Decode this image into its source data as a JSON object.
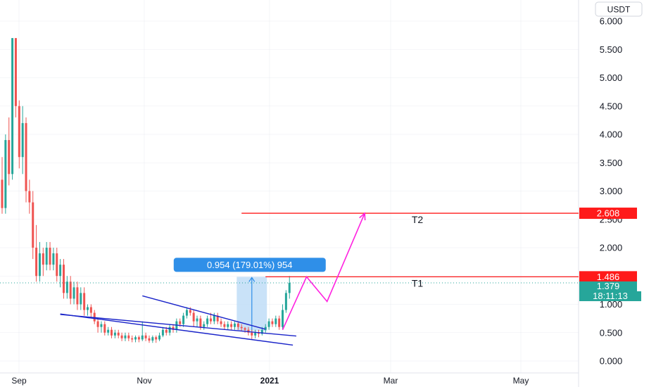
{
  "currency": "USDT",
  "colors": {
    "up": "#26a69a",
    "down": "#ef5350",
    "trendline": "#1a24c9",
    "projection": "#ff22e0",
    "target": "#ff1a1a",
    "measure_fill": "#b7d8f5",
    "measure_label": "#2f8fe8",
    "last_price": "#26a69a",
    "grid": "#e0e3eb"
  },
  "chart_data": {
    "type": "candlestick",
    "title": "",
    "ylabel": "",
    "xlabel": "",
    "ylim": [
      -0.1,
      6.25
    ],
    "y_ticks": [
      "0.000",
      "0.500",
      "1.000",
      "1.500",
      "2.000",
      "2.500",
      "3.000",
      "3.500",
      "4.000",
      "4.500",
      "5.000",
      "5.500",
      "6.000"
    ],
    "x_ticks": [
      {
        "label": "Sep",
        "bold": false
      },
      {
        "label": "Nov",
        "bold": false
      },
      {
        "label": "2021",
        "bold": true
      },
      {
        "label": "Mar",
        "bold": false
      },
      {
        "label": "May",
        "bold": false
      }
    ],
    "candles": [
      [
        3.2,
        2.7,
        3.6,
        2.6
      ],
      [
        2.7,
        3.9,
        4.0,
        2.6
      ],
      [
        3.9,
        3.3,
        4.3,
        3.1
      ],
      [
        3.3,
        5.7,
        5.7,
        3.2
      ],
      [
        5.7,
        4.5,
        5.7,
        4.3
      ],
      [
        4.5,
        3.6,
        4.6,
        3.4
      ],
      [
        3.6,
        4.2,
        4.5,
        3.3
      ],
      [
        4.2,
        3.0,
        4.3,
        2.8
      ],
      [
        3.0,
        2.8,
        3.2,
        2.6
      ],
      [
        2.8,
        2.0,
        3.0,
        1.8
      ],
      [
        2.0,
        1.5,
        2.4,
        1.4
      ],
      [
        1.5,
        1.9,
        2.1,
        1.4
      ],
      [
        1.9,
        1.7,
        2.0,
        1.5
      ],
      [
        1.7,
        2.0,
        2.1,
        1.6
      ],
      [
        2.0,
        1.7,
        2.1,
        1.6
      ],
      [
        1.7,
        1.9,
        2.0,
        1.6
      ],
      [
        1.9,
        1.5,
        2.0,
        1.4
      ],
      [
        1.5,
        1.7,
        1.8,
        1.3
      ],
      [
        1.7,
        1.2,
        1.8,
        1.1
      ],
      [
        1.2,
        1.4,
        1.5,
        1.1
      ],
      [
        1.4,
        1.1,
        1.5,
        1.0
      ],
      [
        1.1,
        1.3,
        1.4,
        1.0
      ],
      [
        1.3,
        1.0,
        1.4,
        0.9
      ],
      [
        1.0,
        1.2,
        1.3,
        0.9
      ],
      [
        1.2,
        0.9,
        1.3,
        0.8
      ],
      [
        0.9,
        0.95,
        1.0,
        0.8
      ],
      [
        0.95,
        0.85,
        1.0,
        0.75
      ],
      [
        0.85,
        0.7,
        0.9,
        0.65
      ],
      [
        0.7,
        0.6,
        0.75,
        0.5
      ],
      [
        0.6,
        0.65,
        0.7,
        0.5
      ],
      [
        0.65,
        0.5,
        0.7,
        0.45
      ],
      [
        0.5,
        0.55,
        0.6,
        0.45
      ],
      [
        0.55,
        0.45,
        0.6,
        0.4
      ],
      [
        0.45,
        0.5,
        0.55,
        0.4
      ],
      [
        0.5,
        0.45,
        0.55,
        0.4
      ],
      [
        0.45,
        0.4,
        0.5,
        0.35
      ],
      [
        0.4,
        0.45,
        0.5,
        0.35
      ],
      [
        0.45,
        0.4,
        0.5,
        0.35
      ],
      [
        0.4,
        0.38,
        0.45,
        0.33
      ],
      [
        0.38,
        0.42,
        0.45,
        0.33
      ],
      [
        0.42,
        0.38,
        0.45,
        0.33
      ],
      [
        0.38,
        0.45,
        0.7,
        0.35
      ],
      [
        0.45,
        0.4,
        0.5,
        0.35
      ],
      [
        0.4,
        0.36,
        0.45,
        0.32
      ],
      [
        0.36,
        0.42,
        0.45,
        0.32
      ],
      [
        0.42,
        0.38,
        0.45,
        0.32
      ],
      [
        0.38,
        0.45,
        0.5,
        0.35
      ],
      [
        0.45,
        0.55,
        0.6,
        0.42
      ],
      [
        0.55,
        0.5,
        0.6,
        0.45
      ],
      [
        0.5,
        0.6,
        0.65,
        0.45
      ],
      [
        0.6,
        0.55,
        0.65,
        0.5
      ],
      [
        0.55,
        0.7,
        0.75,
        0.5
      ],
      [
        0.7,
        0.65,
        0.75,
        0.6
      ],
      [
        0.65,
        0.8,
        0.85,
        0.6
      ],
      [
        0.8,
        0.9,
        0.95,
        0.75
      ],
      [
        0.9,
        0.85,
        0.95,
        0.8
      ],
      [
        0.85,
        0.7,
        0.9,
        0.6
      ],
      [
        0.7,
        0.75,
        0.8,
        0.6
      ],
      [
        0.75,
        0.6,
        0.8,
        0.55
      ],
      [
        0.6,
        0.65,
        0.7,
        0.55
      ],
      [
        0.65,
        0.75,
        0.8,
        0.6
      ],
      [
        0.75,
        0.7,
        0.85,
        0.65
      ],
      [
        0.7,
        0.8,
        0.85,
        0.65
      ],
      [
        0.8,
        0.7,
        0.85,
        0.65
      ],
      [
        0.7,
        0.65,
        0.75,
        0.6
      ],
      [
        0.65,
        0.6,
        0.7,
        0.55
      ],
      [
        0.6,
        0.65,
        0.7,
        0.55
      ],
      [
        0.65,
        0.6,
        0.7,
        0.55
      ],
      [
        0.6,
        0.66,
        0.7,
        0.55
      ],
      [
        0.66,
        0.6,
        0.7,
        0.55
      ],
      [
        0.6,
        0.58,
        0.65,
        0.53
      ],
      [
        0.58,
        0.55,
        0.6,
        0.5
      ],
      [
        0.55,
        0.5,
        0.6,
        0.45
      ],
      [
        0.5,
        0.45,
        0.55,
        0.38
      ],
      [
        0.45,
        0.5,
        0.55,
        0.4
      ],
      [
        0.5,
        0.48,
        0.55,
        0.42
      ],
      [
        0.48,
        0.55,
        0.6,
        0.45
      ],
      [
        0.55,
        0.6,
        0.65,
        0.5
      ],
      [
        0.6,
        0.7,
        0.75,
        0.55
      ],
      [
        0.7,
        0.65,
        0.75,
        0.6
      ],
      [
        0.65,
        0.75,
        0.8,
        0.6
      ],
      [
        0.75,
        0.6,
        0.8,
        0.55
      ],
      [
        0.6,
        0.9,
        1.0,
        0.55
      ],
      [
        0.9,
        1.2,
        1.25,
        0.85
      ],
      [
        1.2,
        1.38,
        1.5,
        1.1
      ]
    ],
    "trendlines": [
      {
        "from": {
          "candle": 17,
          "price": 0.82
        },
        "to": {
          "candle": 86,
          "price": 0.44
        }
      },
      {
        "from": {
          "candle": 17,
          "price": 0.83
        },
        "to": {
          "candle": 85,
          "price": 0.28
        }
      },
      {
        "from": {
          "candle": 41,
          "price": 1.15
        },
        "to": {
          "candle": 77,
          "price": 0.56
        }
      }
    ],
    "projection_path": [
      {
        "candle": 82,
        "price": 0.55
      },
      {
        "candle": 89,
        "price": 1.486
      },
      {
        "candle": 95,
        "price": 1.05
      },
      {
        "candle": 106,
        "price": 2.608
      }
    ],
    "measure": {
      "from_candle": 69,
      "to_candle": 77,
      "low": 0.53,
      "high": 1.486,
      "label": "0.954 (179.01%) 954"
    },
    "targets": [
      {
        "name": "T1",
        "price": 1.486,
        "tag": "1.486",
        "from_candle": 77
      },
      {
        "name": "T2",
        "price": 2.608,
        "tag": "2.608",
        "from_candle": 70
      }
    ],
    "last_price": {
      "price": 1.379,
      "tag": "1.379",
      "countdown": "18:11:13"
    }
  }
}
